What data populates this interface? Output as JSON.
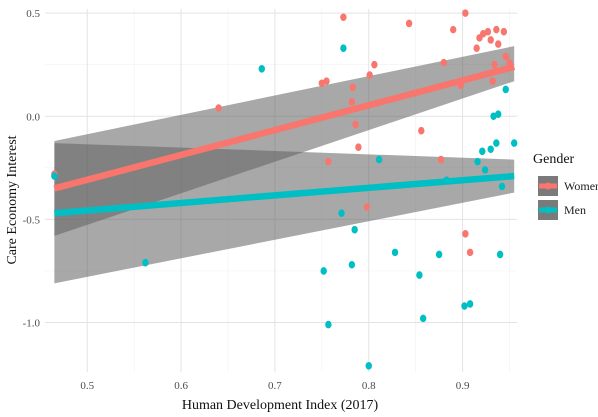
{
  "chart_data": {
    "type": "scatter",
    "xlabel": "Human Development Index (2017)",
    "ylabel": "Care Economy Interest",
    "xlim": [
      0.455,
      0.958
    ],
    "ylim": [
      -1.24,
      0.52
    ],
    "x_ticks": [
      0.5,
      0.6,
      0.7,
      0.8,
      0.9
    ],
    "x_tick_labels": [
      "0.5",
      "0.6",
      "0.7",
      "0.8",
      "0.9"
    ],
    "y_ticks": [
      0.5,
      0.0,
      -0.5,
      -1.0
    ],
    "y_tick_labels": [
      "0.5",
      "0.0",
      "-0.5",
      "-1.0"
    ],
    "grid": true,
    "legend": {
      "title": "Gender",
      "position": "right"
    },
    "series": [
      {
        "name": "Women",
        "color": "#F8766D",
        "points": [
          [
            0.465,
            -0.28
          ],
          [
            0.64,
            0.04
          ],
          [
            0.75,
            0.16
          ],
          [
            0.755,
            0.17
          ],
          [
            0.757,
            -0.22
          ],
          [
            0.773,
            0.48
          ],
          [
            0.782,
            0.07
          ],
          [
            0.783,
            0.14
          ],
          [
            0.786,
            -0.04
          ],
          [
            0.789,
            -0.15
          ],
          [
            0.798,
            -0.44
          ],
          [
            0.801,
            0.2
          ],
          [
            0.806,
            0.25
          ],
          [
            0.843,
            0.45
          ],
          [
            0.856,
            -0.07
          ],
          [
            0.877,
            -0.21
          ],
          [
            0.88,
            0.26
          ],
          [
            0.89,
            0.42
          ],
          [
            0.898,
            0.15
          ],
          [
            0.903,
            -0.57
          ],
          [
            0.903,
            0.5
          ],
          [
            0.908,
            -0.66
          ],
          [
            0.915,
            0.33
          ],
          [
            0.918,
            0.38
          ],
          [
            0.922,
            0.4
          ],
          [
            0.927,
            0.41
          ],
          [
            0.93,
            0.37
          ],
          [
            0.932,
            0.17
          ],
          [
            0.934,
            0.25
          ],
          [
            0.936,
            0.42
          ],
          [
            0.938,
            0.35
          ],
          [
            0.944,
            0.41
          ],
          [
            0.946,
            0.29
          ],
          [
            0.95,
            0.26
          ]
        ],
        "fit": {
          "x": [
            0.465,
            0.955
          ],
          "y": [
            -0.35,
            0.24
          ],
          "ci_lower": [
            -0.58,
            0.17
          ],
          "ci_upper": [
            -0.12,
            0.34
          ]
        }
      },
      {
        "name": "Men",
        "color": "#00BFC4",
        "points": [
          [
            0.465,
            -0.29
          ],
          [
            0.562,
            -0.71
          ],
          [
            0.686,
            0.23
          ],
          [
            0.752,
            -0.75
          ],
          [
            0.757,
            -1.01
          ],
          [
            0.771,
            -0.47
          ],
          [
            0.773,
            0.33
          ],
          [
            0.782,
            -0.72
          ],
          [
            0.785,
            -0.55
          ],
          [
            0.8,
            -1.21
          ],
          [
            0.811,
            -0.21
          ],
          [
            0.828,
            -0.66
          ],
          [
            0.854,
            -0.77
          ],
          [
            0.858,
            -0.98
          ],
          [
            0.875,
            -0.67
          ],
          [
            0.883,
            -0.31
          ],
          [
            0.902,
            -0.92
          ],
          [
            0.908,
            -0.91
          ],
          [
            0.916,
            -0.22
          ],
          [
            0.921,
            -0.17
          ],
          [
            0.924,
            -0.26
          ],
          [
            0.93,
            -0.16
          ],
          [
            0.933,
            0.0
          ],
          [
            0.936,
            -0.13
          ],
          [
            0.938,
            0.01
          ],
          [
            0.94,
            -0.67
          ],
          [
            0.942,
            -0.34
          ],
          [
            0.946,
            0.13
          ],
          [
            0.955,
            -0.13
          ]
        ],
        "fit": {
          "x": [
            0.465,
            0.955
          ],
          "y": [
            -0.47,
            -0.29
          ],
          "ci_lower": [
            -0.81,
            -0.37
          ],
          "ci_upper": [
            -0.13,
            -0.21
          ]
        }
      }
    ]
  }
}
